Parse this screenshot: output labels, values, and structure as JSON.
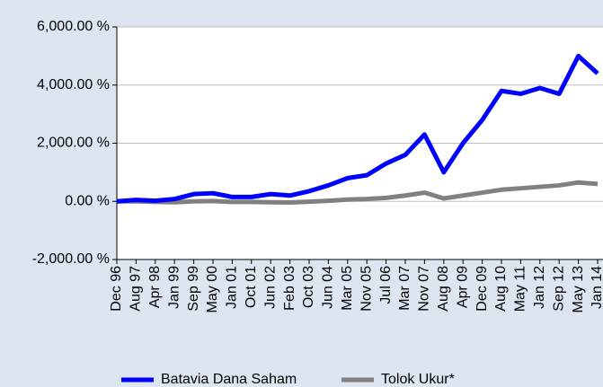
{
  "chart_data": {
    "type": "line",
    "categories": [
      "Dec 96",
      "Aug 97",
      "Apr 98",
      "Jan 99",
      "Sep 99",
      "May 00",
      "Jan 01",
      "Oct 01",
      "Jun 02",
      "Feb 03",
      "Oct 03",
      "Jun 04",
      "Mar 05",
      "Nov 05",
      "Jul 06",
      "Mar 07",
      "Nov 07",
      "Aug 08",
      "Apr 09",
      "Dec 09",
      "Aug 10",
      "May 11",
      "Jan 12",
      "Sep 12",
      "May 13",
      "Jan 14"
    ],
    "series": [
      {
        "name": "Batavia Dana Saham",
        "color": "#0000ff",
        "values": [
          0,
          50,
          20,
          80,
          250,
          280,
          150,
          150,
          250,
          200,
          350,
          550,
          800,
          900,
          1300,
          1600,
          2300,
          1000,
          2000,
          2800,
          3800,
          3700,
          3900,
          3700,
          5000,
          4400
        ]
      },
      {
        "name": "Tolok Ukur*",
        "color": "#808080",
        "values": [
          0,
          0,
          -20,
          -30,
          0,
          10,
          -20,
          -20,
          -30,
          -40,
          -10,
          20,
          60,
          80,
          120,
          200,
          300,
          100,
          200,
          300,
          400,
          450,
          500,
          550,
          650,
          600
        ]
      }
    ],
    "ylim": [
      -2000,
      6000
    ],
    "yticks": [
      {
        "value": -2000,
        "label": "-2,000.00 %"
      },
      {
        "value": 0,
        "label": "0.00 %"
      },
      {
        "value": 2000,
        "label": "2,000.00 %"
      },
      {
        "value": 4000,
        "label": "4,000.00 %"
      },
      {
        "value": 6000,
        "label": "6,000.00 %"
      }
    ],
    "grid": true
  }
}
